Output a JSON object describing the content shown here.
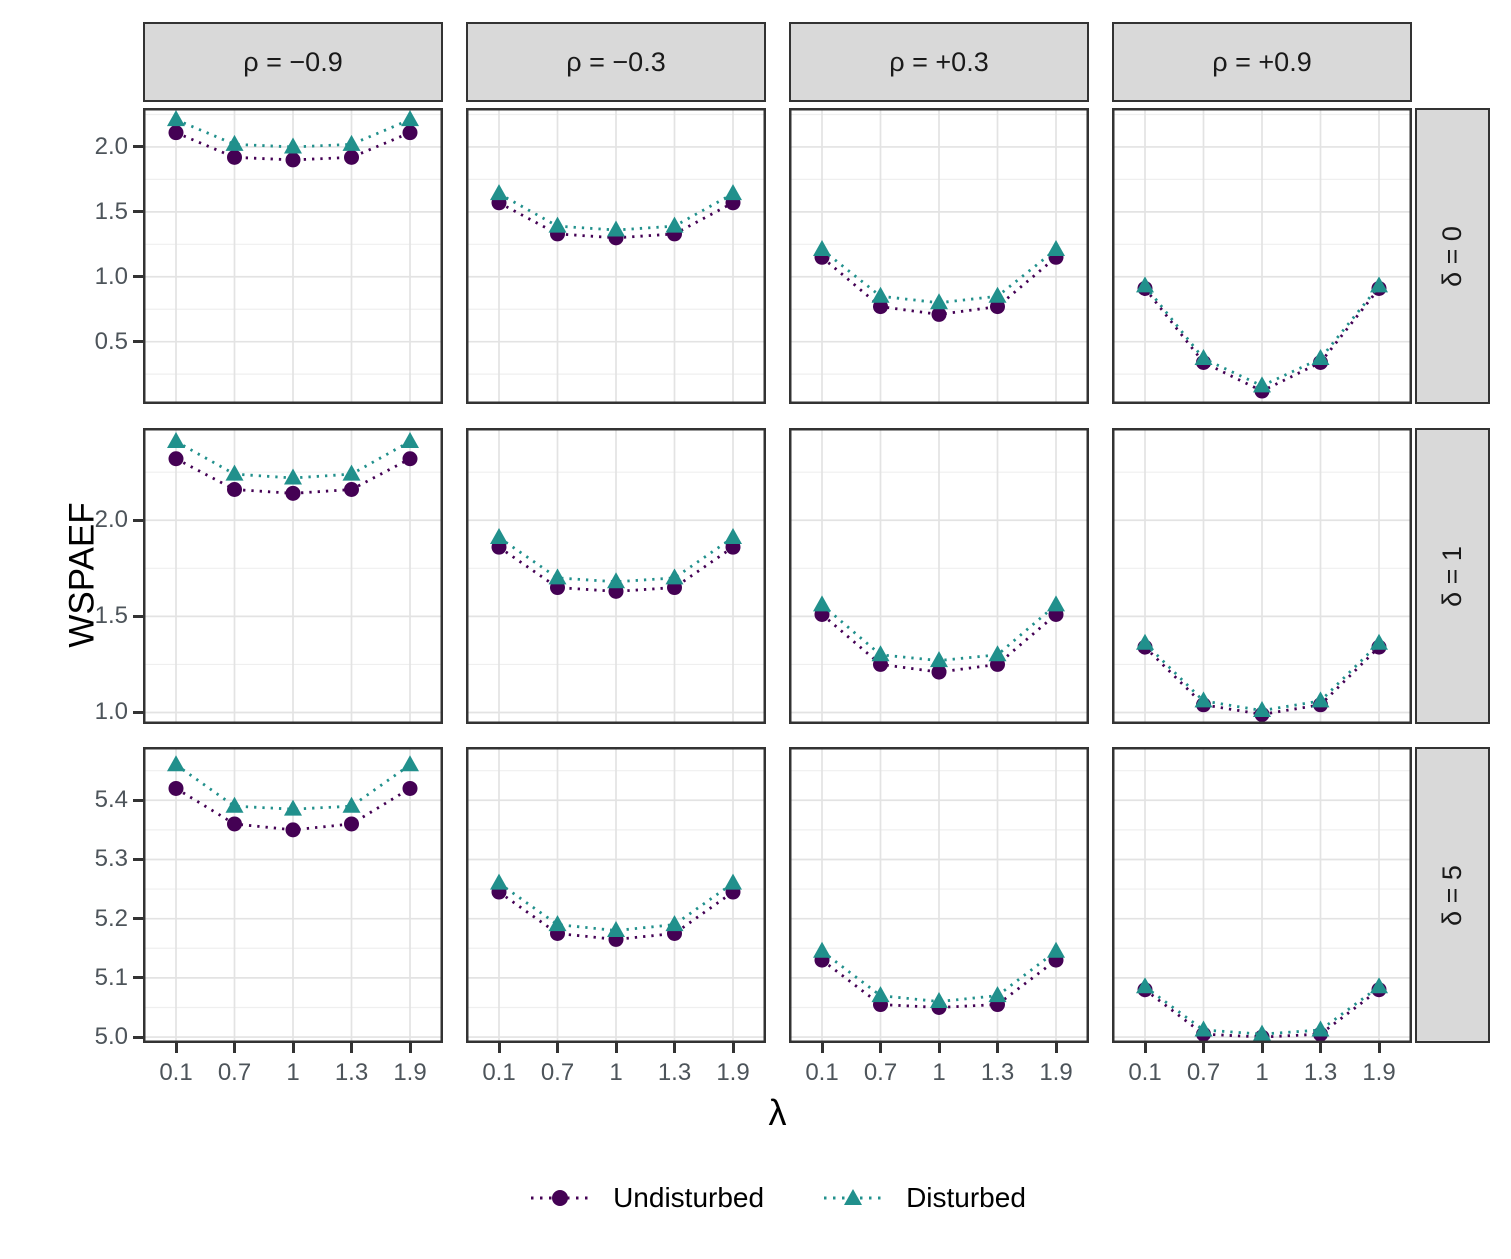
{
  "figure": {
    "y_axis_title": "WSPAEF",
    "x_axis_title": "λ",
    "colors": {
      "undisturbed": "#440154",
      "disturbed": "#21908C",
      "strip_background": "#d9d9d9",
      "panel_border": "#333333",
      "grid_major": "#e3e3e3",
      "grid_minor": "#efefef",
      "tick_label": "#4d545a"
    },
    "legend": {
      "items": [
        {
          "label": "Undisturbed",
          "marker": "circle",
          "color": "#440154"
        },
        {
          "label": "Disturbed",
          "marker": "triangle",
          "color": "#21908C"
        }
      ]
    }
  },
  "chart_data": {
    "type": "line",
    "linestyle": "dotted",
    "x": [
      0.1,
      0.7,
      1,
      1.3,
      1.9
    ],
    "x_tick_labels": [
      "0.1",
      "0.7",
      "1",
      "1.3",
      "1.9"
    ],
    "xlabel": "λ",
    "ylabel": "WSPAEF",
    "grid": true,
    "legend_position": "bottom",
    "facet_cols": [
      {
        "label": "ρ = −0.9"
      },
      {
        "label": "ρ = −0.3"
      },
      {
        "label": "ρ = +0.3"
      },
      {
        "label": "ρ = +0.9"
      }
    ],
    "facet_rows": [
      {
        "label": "δ = 0",
        "ylim": [
          0.02,
          2.3
        ],
        "yticks": [
          {
            "value": 2.0,
            "label": "2.0"
          },
          {
            "value": 1.5,
            "label": "1.5"
          },
          {
            "value": 1.0,
            "label": "1.0"
          },
          {
            "value": 0.5,
            "label": "0.5"
          }
        ],
        "yminor": [
          2.25,
          1.75,
          1.25,
          0.75,
          0.25
        ]
      },
      {
        "label": "δ = 1",
        "ylim": [
          0.94,
          2.48
        ],
        "yticks": [
          {
            "value": 2.0,
            "label": "2.0"
          },
          {
            "value": 1.5,
            "label": "1.5"
          },
          {
            "value": 1.0,
            "label": "1.0"
          }
        ],
        "yminor": [
          2.25,
          1.75,
          1.25
        ]
      },
      {
        "label": "δ = 5",
        "ylim": [
          4.99,
          5.49
        ],
        "yticks": [
          {
            "value": 5.4,
            "label": "5.4"
          },
          {
            "value": 5.3,
            "label": "5.3"
          },
          {
            "value": 5.2,
            "label": "5.2"
          },
          {
            "value": 5.1,
            "label": "5.1"
          },
          {
            "value": 5.0,
            "label": "5.0"
          }
        ],
        "yminor": [
          5.45,
          5.35,
          5.25,
          5.15,
          5.05
        ]
      }
    ],
    "panels": [
      [
        {
          "undisturbed": [
            2.11,
            1.92,
            1.9,
            1.92,
            2.11
          ],
          "disturbed": [
            2.21,
            2.02,
            2.0,
            2.02,
            2.21
          ]
        },
        {
          "undisturbed": [
            1.57,
            1.33,
            1.3,
            1.33,
            1.57
          ],
          "disturbed": [
            1.64,
            1.39,
            1.36,
            1.39,
            1.64
          ]
        },
        {
          "undisturbed": [
            1.15,
            0.77,
            0.71,
            0.77,
            1.15
          ],
          "disturbed": [
            1.21,
            0.85,
            0.8,
            0.85,
            1.21
          ]
        },
        {
          "undisturbed": [
            0.91,
            0.34,
            0.12,
            0.34,
            0.91
          ],
          "disturbed": [
            0.93,
            0.37,
            0.16,
            0.37,
            0.93
          ]
        }
      ],
      [
        {
          "undisturbed": [
            2.32,
            2.16,
            2.14,
            2.16,
            2.32
          ],
          "disturbed": [
            2.41,
            2.24,
            2.22,
            2.24,
            2.41
          ]
        },
        {
          "undisturbed": [
            1.86,
            1.65,
            1.63,
            1.65,
            1.86
          ],
          "disturbed": [
            1.91,
            1.7,
            1.68,
            1.7,
            1.91
          ]
        },
        {
          "undisturbed": [
            1.51,
            1.25,
            1.21,
            1.25,
            1.51
          ],
          "disturbed": [
            1.56,
            1.3,
            1.27,
            1.3,
            1.56
          ]
        },
        {
          "undisturbed": [
            1.34,
            1.04,
            0.99,
            1.04,
            1.34
          ],
          "disturbed": [
            1.36,
            1.06,
            1.01,
            1.06,
            1.36
          ]
        }
      ],
      [
        {
          "undisturbed": [
            5.42,
            5.36,
            5.35,
            5.36,
            5.42
          ],
          "disturbed": [
            5.46,
            5.39,
            5.385,
            5.39,
            5.46
          ]
        },
        {
          "undisturbed": [
            5.245,
            5.175,
            5.165,
            5.175,
            5.245
          ],
          "disturbed": [
            5.26,
            5.19,
            5.18,
            5.19,
            5.26
          ]
        },
        {
          "undisturbed": [
            5.13,
            5.055,
            5.05,
            5.055,
            5.13
          ],
          "disturbed": [
            5.145,
            5.07,
            5.06,
            5.07,
            5.145
          ]
        },
        {
          "undisturbed": [
            5.08,
            5.005,
            5.0,
            5.005,
            5.08
          ],
          "disturbed": [
            5.085,
            5.012,
            5.005,
            5.012,
            5.085
          ]
        }
      ]
    ]
  }
}
